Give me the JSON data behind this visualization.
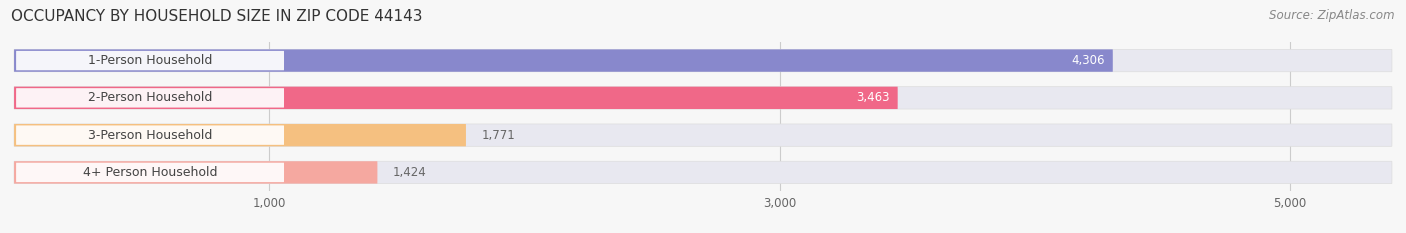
{
  "title": "OCCUPANCY BY HOUSEHOLD SIZE IN ZIP CODE 44143",
  "source": "Source: ZipAtlas.com",
  "categories": [
    "1-Person Household",
    "2-Person Household",
    "3-Person Household",
    "4+ Person Household"
  ],
  "values": [
    4306,
    3463,
    1771,
    1424
  ],
  "bar_colors": [
    "#8888cc",
    "#f06888",
    "#f5c080",
    "#f5a8a0"
  ],
  "bar_bg_color": "#e8e8f0",
  "label_box_color": "#ffffff",
  "text_color": "#444444",
  "value_label_colors": [
    "white",
    "white",
    "#666666",
    "#666666"
  ],
  "xlim": [
    0,
    5400
  ],
  "xticks": [
    1000,
    3000,
    5000
  ],
  "xtick_labels": [
    "1,000",
    "3,000",
    "5,000"
  ],
  "background_color": "#f7f7f7",
  "title_fontsize": 11,
  "source_fontsize": 8.5,
  "bar_label_fontsize": 8.5,
  "category_label_fontsize": 9,
  "value_threshold": 2000
}
